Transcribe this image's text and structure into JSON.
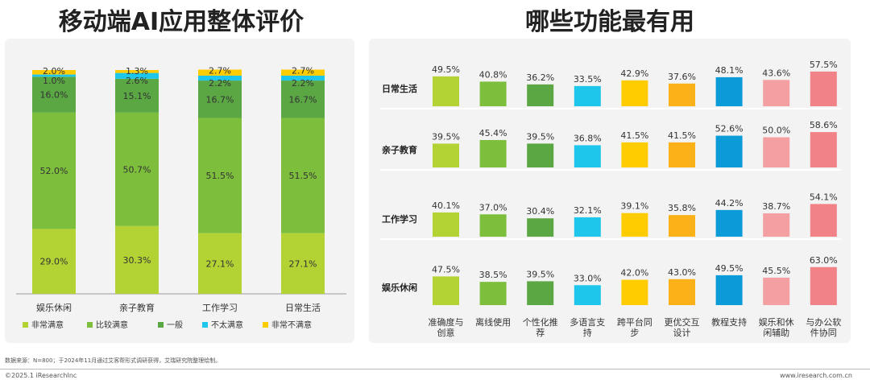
{
  "titles": {
    "left": "移动端AI应用整体评价",
    "right": "哪些功能最有用"
  },
  "colors": {
    "very_satisfied": "#b3d334",
    "satisfied": "#7dbf3d",
    "neutral": "#5aa744",
    "dissatisfied": "#1fc6ec",
    "very_dissatisfied": "#ffcc00"
  },
  "chart_data": [
    {
      "type": "bar",
      "stacked": true,
      "categories": [
        "娱乐休闲",
        "亲子教育",
        "工作学习",
        "日常生活"
      ],
      "series": [
        {
          "name": "非常满意",
          "values": [
            29.0,
            30.3,
            27.1,
            27.1
          ],
          "color": "#b3d334"
        },
        {
          "name": "比较满意",
          "values": [
            52.0,
            50.7,
            51.5,
            51.5
          ],
          "color": "#7dbf3d"
        },
        {
          "name": "一般",
          "values": [
            16.0,
            15.1,
            16.7,
            16.7
          ],
          "color": "#5aa744"
        },
        {
          "name": "不太满意",
          "values": [
            1.0,
            2.6,
            2.2,
            2.2
          ],
          "color": "#1fc6ec"
        },
        {
          "name": "非常不满意",
          "values": [
            2.0,
            1.3,
            2.7,
            2.7
          ],
          "color": "#ffcc00"
        }
      ],
      "labels": [
        [
          "29.0%",
          "52.0%",
          "16.0%",
          "1.0%",
          "2.0%"
        ],
        [
          "30.3%",
          "50.7%",
          "15.1%",
          "2.6%",
          "1.3%"
        ],
        [
          "27.1%",
          "51.5%",
          "16.7%",
          "2.2%",
          "2.7%"
        ],
        [
          "27.1%",
          "51.5%",
          "16.7%",
          "2.2%",
          "2.7%"
        ]
      ],
      "ylim": [
        0,
        100
      ],
      "legend_position": "bottom"
    },
    {
      "type": "bar",
      "layout": "small-multiples",
      "categories": [
        "准确度与创意",
        "离线使用",
        "个性化推荐",
        "多语言支持",
        "跨平台同步",
        "更优交互设计",
        "教程支持",
        "娱乐和休闲辅助",
        "与办公软件协同"
      ],
      "category_lines": [
        [
          "准确度与",
          "创意"
        ],
        [
          "离线使用"
        ],
        [
          "个性化推",
          "荐"
        ],
        [
          "多语言支",
          "持"
        ],
        [
          "跨平台同",
          "步"
        ],
        [
          "更优交互",
          "设计"
        ],
        [
          "教程支持"
        ],
        [
          "娱乐和休",
          "闲辅助"
        ],
        [
          "与办公软",
          "件协同"
        ]
      ],
      "colors": [
        "#b3d334",
        "#7dbf3d",
        "#5aa744",
        "#1fc6ec",
        "#ffcc00",
        "#fbb117",
        "#0b9bd8",
        "#f4a0a3",
        "#f08288"
      ],
      "rows": [
        {
          "name": "日常生活",
          "values": [
            49.5,
            40.8,
            36.2,
            33.5,
            42.9,
            37.6,
            48.1,
            43.6,
            57.5
          ],
          "labels": [
            "49.5%",
            "40.8%",
            "36.2%",
            "33.5%",
            "42.9%",
            "37.6%",
            "48.1%",
            "43.6%",
            "57.5%"
          ]
        },
        {
          "name": "亲子教育",
          "values": [
            39.5,
            45.4,
            39.5,
            36.8,
            41.5,
            41.5,
            52.6,
            50.0,
            58.6
          ],
          "labels": [
            "39.5%",
            "45.4%",
            "39.5%",
            "36.8%",
            "41.5%",
            "41.5%",
            "52.6%",
            "50.0%",
            "58.6%"
          ]
        },
        {
          "name": "工作学习",
          "values": [
            40.1,
            37.0,
            30.4,
            32.1,
            39.1,
            35.8,
            44.2,
            38.7,
            54.1
          ],
          "labels": [
            "40.1%",
            "37.0%",
            "30.4%",
            "32.1%",
            "39.1%",
            "35.8%",
            "44.2%",
            "38.7%",
            "54.1%"
          ]
        },
        {
          "name": "娱乐休闲",
          "values": [
            47.5,
            38.5,
            39.5,
            33.0,
            42.0,
            43.0,
            49.5,
            45.5,
            63.0
          ],
          "labels": [
            "47.5%",
            "38.5%",
            "39.5%",
            "33.0%",
            "42.0%",
            "43.0%",
            "49.5%",
            "45.5%",
            "63.0%"
          ]
        }
      ]
    }
  ],
  "footer": {
    "source": "数据来源：N=800；于2024年11月通过艾客帮形式调研获得，艾瑞研究院整理绘制。",
    "copyright": "©2025.1 iResearchInc",
    "website": "www.iresearch.com.cn"
  }
}
